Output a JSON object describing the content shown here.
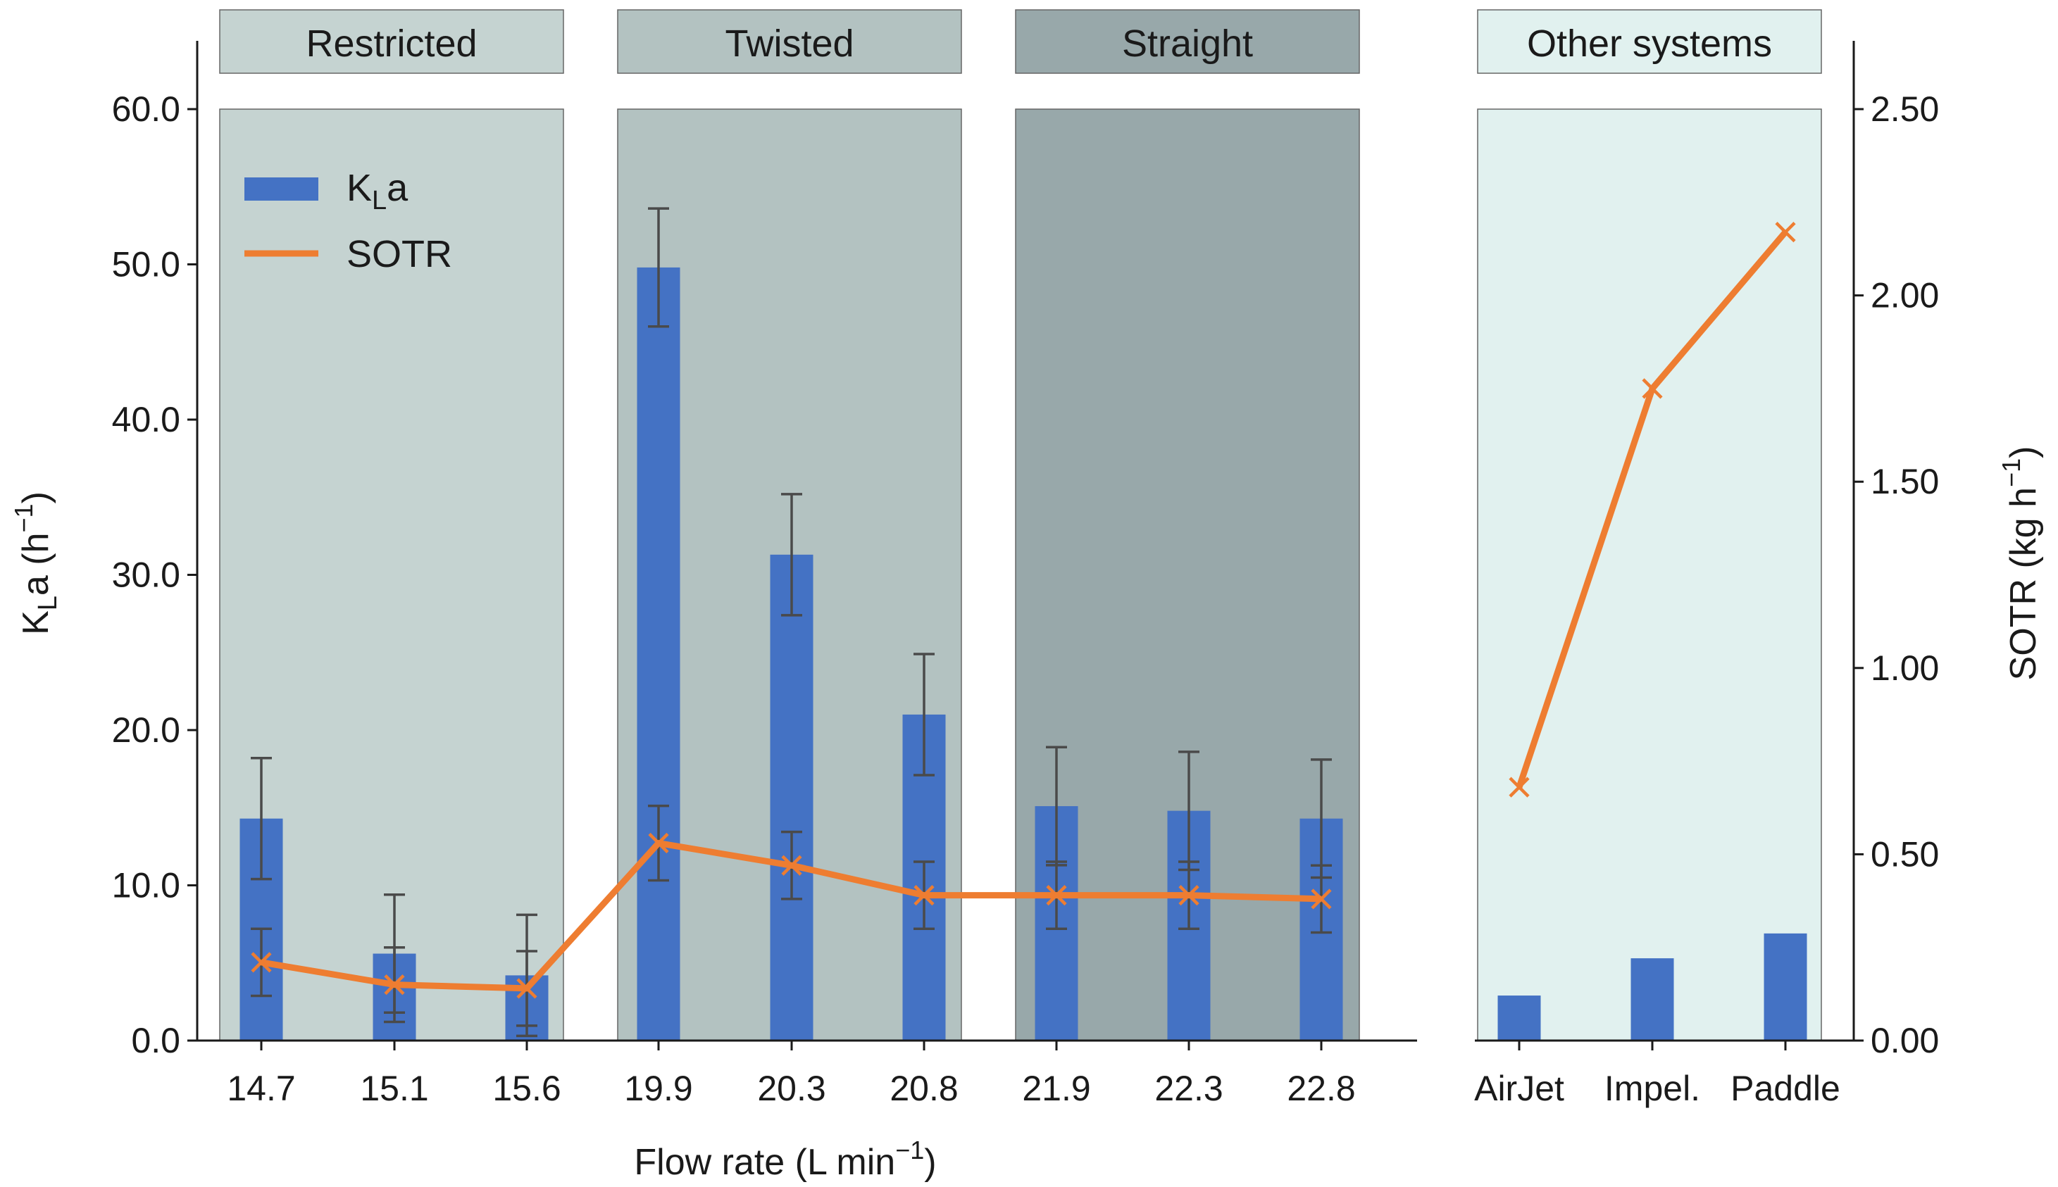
{
  "chart_data": {
    "type": "bar",
    "groups": [
      {
        "label": "Restricted",
        "color": "#c5d3d1",
        "categories": [
          "14.7",
          "15.1",
          "15.6"
        ]
      },
      {
        "label": "Twisted",
        "color": "#b3c2c1",
        "categories": [
          "19.9",
          "20.3",
          "20.8"
        ]
      },
      {
        "label": "Straight",
        "color": "#98a8aa",
        "categories": [
          "21.9",
          "22.3",
          "22.8"
        ]
      },
      {
        "label": "Other systems",
        "color": "#e1f1ef",
        "categories": [
          "AirJet",
          "Impel.",
          "Paddle"
        ]
      }
    ],
    "series": [
      {
        "name": "KLa",
        "axis": "left",
        "kind": "bar",
        "color": "#4472c4",
        "main_values": [
          14.3,
          5.6,
          4.2,
          49.8,
          31.3,
          21.0,
          15.1,
          14.8,
          14.3
        ],
        "main_errors": [
          3.9,
          3.8,
          3.9,
          3.8,
          3.9,
          3.9,
          3.8,
          3.8,
          3.8
        ],
        "other_values": [
          2.9,
          5.3,
          6.9
        ]
      },
      {
        "name": "SOTR",
        "axis": "right",
        "kind": "line",
        "color": "#ee7d31",
        "main_values": [
          0.21,
          0.15,
          0.14,
          0.53,
          0.47,
          0.39,
          0.39,
          0.39,
          0.38
        ],
        "main_errors": [
          0.09,
          0.1,
          0.1,
          0.1,
          0.09,
          0.09,
          0.09,
          0.09,
          0.09
        ],
        "other_values": [
          0.68,
          1.75,
          2.17
        ]
      }
    ],
    "xlabel": "Flow rate (L min⁻¹)",
    "ylabel_left": "KLa (h⁻¹)",
    "ylabel_right": "SOTR (kg h⁻¹)",
    "ylim_left": [
      0,
      60
    ],
    "ylim_right": [
      0,
      2.5
    ],
    "yticks_left": [
      "0.0",
      "10.0",
      "20.0",
      "30.0",
      "40.0",
      "50.0",
      "60.0"
    ],
    "yticks_right": [
      "0.00",
      "0.50",
      "1.00",
      "1.50",
      "2.00",
      "2.50"
    ],
    "legend": {
      "position": "top-left",
      "entries": [
        "KLa",
        "SOTR"
      ]
    }
  },
  "labels": {
    "xlabel_main": "Flow rate (L min",
    "xlabel_sup": "−1",
    "xlabel_close": ")",
    "ylabel_left_base": "K",
    "ylabel_left_sub": "L",
    "ylabel_left_rest": "a (h",
    "ylabel_left_sup": "−1",
    "ylabel_left_close": ")",
    "ylabel_right_main": "SOTR (kg h",
    "ylabel_right_sup": "−1",
    "ylabel_right_close": ")",
    "legend_kla_base": "K",
    "legend_kla_sub": "L",
    "legend_kla_rest": "a",
    "legend_sotr": "SOTR"
  }
}
